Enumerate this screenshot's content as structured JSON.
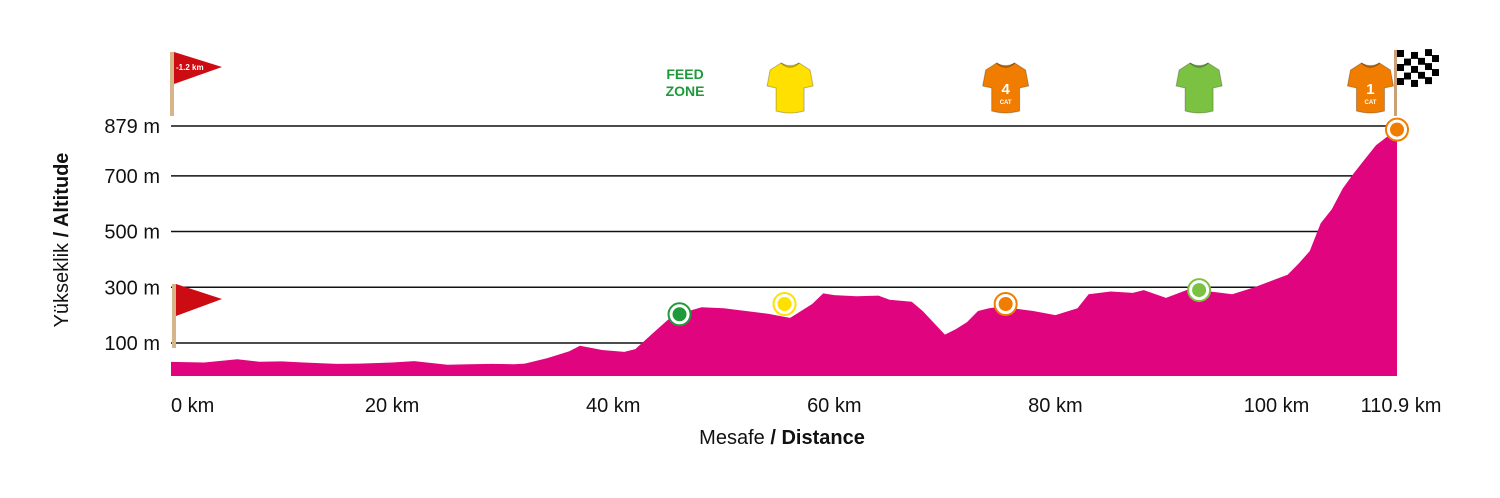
{
  "chart_data": {
    "type": "area",
    "x_axis": {
      "label_part1": "Mesafe",
      "label_part2": "/ Distance",
      "unit": "km",
      "range": [
        0,
        110.9
      ],
      "ticks": [
        0,
        20,
        40,
        60,
        80,
        100,
        110.9
      ],
      "tick_labels": [
        "0 km",
        "20 km",
        "40 km",
        "60 km",
        "80 km",
        "100 km",
        "110.9 km"
      ]
    },
    "y_axis": {
      "label_part1": "Yükseklik",
      "label_part2": "/ Altitude",
      "unit": "m",
      "ticks": [
        100,
        300,
        500,
        700,
        879
      ],
      "tick_labels": [
        "100 m",
        "300 m",
        "500 m",
        "700 m",
        "879 m"
      ]
    },
    "grid": "horizontal lines at labeled altitudes",
    "fill_color": "#e0057e",
    "series": [
      {
        "x": [
          0,
          3,
          6,
          8,
          10,
          12,
          15,
          17,
          20,
          22,
          25,
          27,
          29,
          31,
          32,
          34,
          36,
          37,
          39,
          41,
          42,
          44,
          45,
          46,
          48,
          50,
          52,
          54,
          56,
          58,
          59,
          60,
          62,
          64,
          65,
          67,
          68,
          70,
          71,
          72,
          73,
          74,
          75,
          76,
          78,
          80,
          82,
          83,
          85,
          87,
          88,
          90,
          92,
          94,
          96,
          98,
          100,
          101,
          102,
          103,
          104,
          105,
          106,
          107,
          108,
          109,
          110,
          110.9
        ],
        "y": [
          32,
          30,
          42,
          33,
          34,
          30,
          25,
          26,
          30,
          35,
          22,
          24,
          25,
          24,
          26,
          45,
          70,
          90,
          75,
          68,
          78,
          150,
          185,
          205,
          228,
          225,
          215,
          205,
          190,
          240,
          278,
          272,
          268,
          270,
          255,
          248,
          215,
          130,
          150,
          175,
          215,
          225,
          230,
          225,
          215,
          200,
          225,
          275,
          285,
          280,
          290,
          262,
          292,
          285,
          275,
          300,
          330,
          345,
          385,
          430,
          530,
          580,
          655,
          710,
          760,
          810,
          840,
          855
        ]
      }
    ],
    "markers": [
      {
        "x": 46,
        "y": 203,
        "color": "#1f9a3a"
      },
      {
        "x": 55.5,
        "y": 240,
        "color": "#ffe000"
      },
      {
        "x": 75.5,
        "y": 240,
        "color": "#f07d00"
      },
      {
        "x": 93,
        "y": 290,
        "color": "#7cc242"
      },
      {
        "x": 110.9,
        "y": 866,
        "color": "#f07d00"
      }
    ],
    "icons": [
      {
        "icon": "feed-zone-label",
        "x": 46.5,
        "line1": "FEED",
        "line2": "ZONE"
      },
      {
        "icon": "jersey-icon",
        "x": 56,
        "color": "#ffe000",
        "text": "",
        "subtext": ""
      },
      {
        "icon": "jersey-icon",
        "x": 75.5,
        "color": "#f07d00",
        "text": "4",
        "subtext": "CAT"
      },
      {
        "icon": "jersey-icon",
        "x": 93,
        "color": "#7cc242",
        "text": "",
        "subtext": ""
      },
      {
        "icon": "jersey-icon",
        "x": 108.5,
        "color": "#f07d00",
        "text": "1",
        "subtext": "CAT"
      }
    ],
    "flags": [
      {
        "icon": "start-flag-icon",
        "text": "",
        "color": "#cc0b12"
      },
      {
        "icon": "final-km-flag-icon",
        "text": "-1.2 km",
        "color": "#cc0b12"
      },
      {
        "icon": "checkered-finish-flag-icon",
        "text": "",
        "color": "#000000"
      }
    ]
  }
}
